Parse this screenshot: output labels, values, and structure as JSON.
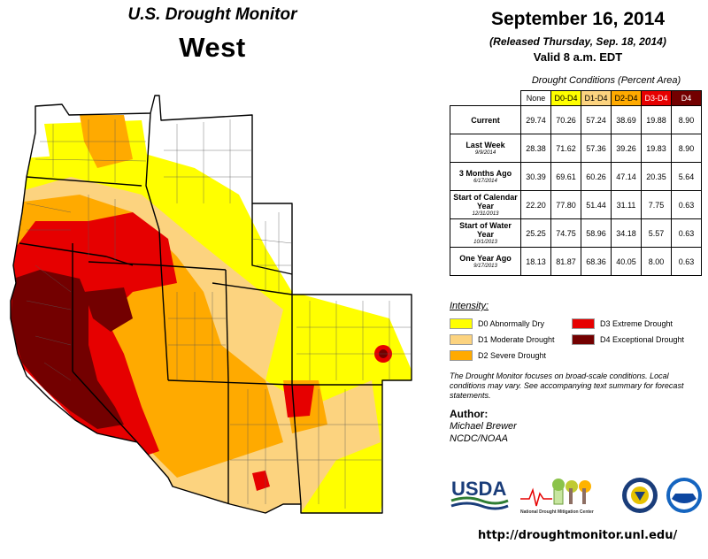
{
  "title": {
    "prefix": "U.S. Drought Monitor",
    "region": "West"
  },
  "header": {
    "date": "September 16, 2014",
    "released": "(Released Thursday, Sep. 18, 2014)",
    "valid": "Valid  8 a.m. EDT"
  },
  "table": {
    "caption": "Drought Conditions (Percent Area)",
    "columns": [
      {
        "label": "None",
        "color": "#ffffff"
      },
      {
        "label": "D0-D4",
        "color": "#ffff00"
      },
      {
        "label": "D1-D4",
        "color": "#fcd37f"
      },
      {
        "label": "D2-D4",
        "color": "#ffaa00"
      },
      {
        "label": "D3-D4",
        "color": "#e60000"
      },
      {
        "label": "D4",
        "color": "#730000"
      }
    ],
    "rows": [
      {
        "label": "Current",
        "date": "",
        "values": [
          "29.74",
          "70.26",
          "57.24",
          "38.69",
          "19.88",
          "8.90"
        ]
      },
      {
        "label": "Last Week",
        "date": "9/9/2014",
        "values": [
          "28.38",
          "71.62",
          "57.36",
          "39.26",
          "19.83",
          "8.90"
        ]
      },
      {
        "label": "3 Months Ago",
        "date": "6/17/2014",
        "values": [
          "30.39",
          "69.61",
          "60.26",
          "47.14",
          "20.35",
          "5.64"
        ]
      },
      {
        "label": "Start of Calendar Year",
        "date": "12/31/2013",
        "values": [
          "22.20",
          "77.80",
          "51.44",
          "31.11",
          "7.75",
          "0.63"
        ]
      },
      {
        "label": "Start of Water Year",
        "date": "10/1/2013",
        "values": [
          "25.25",
          "74.75",
          "58.96",
          "34.18",
          "5.57",
          "0.63"
        ]
      },
      {
        "label": "One Year Ago",
        "date": "9/17/2013",
        "values": [
          "18.13",
          "81.87",
          "68.36",
          "40.05",
          "8.00",
          "0.63"
        ]
      }
    ]
  },
  "legend": {
    "title": "Intensity:",
    "items": [
      {
        "label": "D0 Abnormally Dry",
        "color": "#ffff00"
      },
      {
        "label": "D1 Moderate Drought",
        "color": "#fcd37f"
      },
      {
        "label": "D2 Severe Drought",
        "color": "#ffaa00"
      },
      {
        "label": "D3 Extreme Drought",
        "color": "#e60000"
      },
      {
        "label": "D4 Exceptional Drought",
        "color": "#730000"
      }
    ]
  },
  "note": "The Drought Monitor focuses on broad-scale conditions. Local conditions may vary. See accompanying text summary for forecast statements.",
  "author": {
    "label": "Author:",
    "name": "Michael Brewer",
    "org": "NCDC/NOAA"
  },
  "logos": {
    "usda": "USDA",
    "ndmc": "National Drought Mitigation Center"
  },
  "url": "http://droughtmonitor.unl.edu/"
}
